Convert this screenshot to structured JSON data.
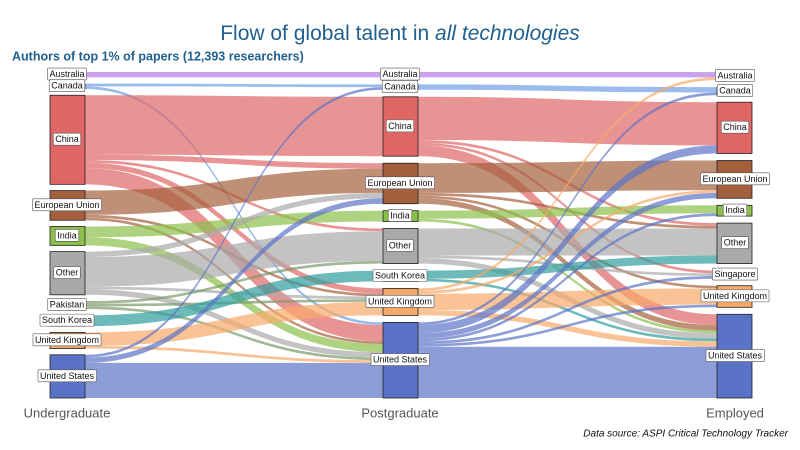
{
  "chart_data": {
    "type": "sankey",
    "title": "Flow of global talent in",
    "title_emphasis": "all technologies",
    "subtitle": "Authors of top 1% of papers (12,393 researchers)",
    "source": "Data source: ASPI Critical Technology Tracker",
    "stages": [
      {
        "name": "Undergraduate",
        "nodes": [
          {
            "name": "Australia",
            "value": 2,
            "color": "#b57be6"
          },
          {
            "name": "Canada",
            "value": 2,
            "color": "#6e9fe6"
          },
          {
            "name": "China",
            "value": 33,
            "color": "#e06666"
          },
          {
            "name": "European Union",
            "value": 11,
            "color": "#a45f3c"
          },
          {
            "name": "India",
            "value": 7,
            "color": "#8cc04a"
          },
          {
            "name": "Other",
            "value": 16,
            "color": "#a9a9a9"
          },
          {
            "name": "Pakistan",
            "value": 3,
            "color": "#7a9a6a"
          },
          {
            "name": "South Korea",
            "value": 4,
            "color": "#2f9c9c"
          },
          {
            "name": "United Kingdom",
            "value": 6,
            "color": "#f6a96a"
          },
          {
            "name": "United States",
            "value": 16,
            "color": "#5b73c7"
          }
        ],
        "links": [
          {
            "from": 0,
            "to": 0,
            "value": 2
          },
          {
            "from": 1,
            "to": 1,
            "value": 1
          },
          {
            "from": 1,
            "to": 8,
            "value": 1
          },
          {
            "from": 2,
            "to": 2,
            "value": 22
          },
          {
            "from": 2,
            "to": 3,
            "value": 2
          },
          {
            "from": 2,
            "to": 5,
            "value": 1
          },
          {
            "from": 2,
            "to": 7,
            "value": 2
          },
          {
            "from": 2,
            "to": 8,
            "value": 6
          },
          {
            "from": 3,
            "to": 3,
            "value": 9
          },
          {
            "from": 3,
            "to": 7,
            "value": 1
          },
          {
            "from": 3,
            "to": 8,
            "value": 1
          },
          {
            "from": 4,
            "to": 4,
            "value": 4
          },
          {
            "from": 4,
            "to": 8,
            "value": 3
          },
          {
            "from": 5,
            "to": 3,
            "value": 2
          },
          {
            "from": 5,
            "to": 5,
            "value": 11
          },
          {
            "from": 5,
            "to": 7,
            "value": 1
          },
          {
            "from": 5,
            "to": 8,
            "value": 2
          },
          {
            "from": 6,
            "to": 5,
            "value": 1
          },
          {
            "from": 6,
            "to": 7,
            "value": 1
          },
          {
            "from": 6,
            "to": 8,
            "value": 1
          },
          {
            "from": 7,
            "to": 6,
            "value": 4
          },
          {
            "from": 8,
            "to": 7,
            "value": 5
          },
          {
            "from": 8,
            "to": 8,
            "value": 1
          },
          {
            "from": 9,
            "to": 1,
            "value": 1
          },
          {
            "from": 9,
            "to": 3,
            "value": 2
          },
          {
            "from": 9,
            "to": 8,
            "value": 13
          }
        ]
      },
      {
        "name": "Postgraduate",
        "nodes": [
          {
            "name": "Australia",
            "value": 2,
            "color": "#b57be6"
          },
          {
            "name": "Canada",
            "value": 2,
            "color": "#6e9fe6"
          },
          {
            "name": "China",
            "value": 22,
            "color": "#e06666"
          },
          {
            "name": "European Union",
            "value": 15,
            "color": "#a45f3c"
          },
          {
            "name": "India",
            "value": 4,
            "color": "#8cc04a"
          },
          {
            "name": "Other",
            "value": 13,
            "color": "#a9a9a9"
          },
          {
            "name": "South Korea",
            "value": 4,
            "color": "#2f9c9c"
          },
          {
            "name": "United Kingdom",
            "value": 10,
            "color": "#f6a96a"
          },
          {
            "name": "United States",
            "value": 28,
            "color": "#5b73c7"
          }
        ],
        "links": [
          {
            "from": 0,
            "to": 0,
            "value": 2
          },
          {
            "from": 1,
            "to": 1,
            "value": 2
          },
          {
            "from": 2,
            "to": 2,
            "value": 16
          },
          {
            "from": 2,
            "to": 5,
            "value": 1
          },
          {
            "from": 2,
            "to": 6,
            "value": 1
          },
          {
            "from": 2,
            "to": 8,
            "value": 4
          },
          {
            "from": 3,
            "to": 3,
            "value": 11
          },
          {
            "from": 3,
            "to": 5,
            "value": 1
          },
          {
            "from": 3,
            "to": 7,
            "value": 1
          },
          {
            "from": 3,
            "to": 8,
            "value": 2
          },
          {
            "from": 4,
            "to": 4,
            "value": 3
          },
          {
            "from": 4,
            "to": 8,
            "value": 1
          },
          {
            "from": 5,
            "to": 5,
            "value": 10
          },
          {
            "from": 5,
            "to": 6,
            "value": 1
          },
          {
            "from": 5,
            "to": 8,
            "value": 2
          },
          {
            "from": 6,
            "to": 5,
            "value": 3
          },
          {
            "from": 6,
            "to": 8,
            "value": 1
          },
          {
            "from": 7,
            "to": 0,
            "value": 1
          },
          {
            "from": 7,
            "to": 3,
            "value": 1
          },
          {
            "from": 7,
            "to": 7,
            "value": 6
          },
          {
            "from": 7,
            "to": 8,
            "value": 2
          },
          {
            "from": 8,
            "to": 1,
            "value": 1
          },
          {
            "from": 8,
            "to": 2,
            "value": 3
          },
          {
            "from": 8,
            "to": 3,
            "value": 2
          },
          {
            "from": 8,
            "to": 4,
            "value": 1
          },
          {
            "from": 8,
            "to": 6,
            "value": 1
          },
          {
            "from": 8,
            "to": 7,
            "value": 1
          },
          {
            "from": 8,
            "to": 8,
            "value": 19
          }
        ]
      },
      {
        "name": "Employed",
        "nodes": [
          {
            "name": "Australia",
            "value": 3,
            "color": "#b57be6"
          },
          {
            "name": "Canada",
            "value": 3,
            "color": "#6e9fe6"
          },
          {
            "name": "China",
            "value": 19,
            "color": "#e06666"
          },
          {
            "name": "European Union",
            "value": 14,
            "color": "#a45f3c"
          },
          {
            "name": "India",
            "value": 4,
            "color": "#8cc04a"
          },
          {
            "name": "Other",
            "value": 15,
            "color": "#a9a9a9"
          },
          {
            "name": "Singapore",
            "value": 3,
            "color": "#e98fa3"
          },
          {
            "name": "United Kingdom",
            "value": 8,
            "color": "#f6a96a"
          },
          {
            "name": "United States",
            "value": 31,
            "color": "#5b73c7"
          }
        ]
      }
    ]
  }
}
